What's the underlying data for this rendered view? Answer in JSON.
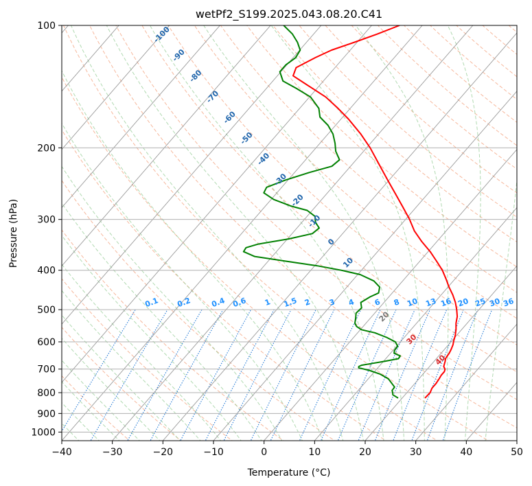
{
  "chart_data": {
    "type": "line",
    "title": "wetPf2_S199.2025.043.08.20.C41",
    "xlabel": "Temperature (°C)",
    "ylabel": "Pressure (hPa)",
    "xlim": [
      -40,
      50
    ],
    "ylim": [
      1050,
      100
    ],
    "y_scale": "log",
    "skew": "skew-T log-p diagram",
    "x_ticks": [
      -40,
      -30,
      -20,
      -10,
      0,
      10,
      20,
      30,
      40,
      50
    ],
    "y_ticks": [
      1000,
      900,
      800,
      700,
      600,
      500,
      400,
      300,
      200,
      100
    ],
    "grid": true,
    "series": [
      {
        "color": "#ff0000",
        "points": [
          [
            825,
            24.5
          ],
          [
            800,
            24.6
          ],
          [
            780,
            24.2
          ],
          [
            760,
            24.2
          ],
          [
            740,
            24.0
          ],
          [
            725,
            23.8
          ],
          [
            710,
            23.8
          ],
          [
            700,
            23.5
          ],
          [
            690,
            22.8
          ],
          [
            680,
            22.5
          ],
          [
            670,
            22.2
          ],
          [
            660,
            21.8
          ],
          [
            650,
            21.7
          ],
          [
            640,
            21.6
          ],
          [
            625,
            21.3
          ],
          [
            610,
            20.9
          ],
          [
            595,
            20.3
          ],
          [
            580,
            19.8
          ],
          [
            560,
            18.9
          ],
          [
            540,
            17.8
          ],
          [
            520,
            16.9
          ],
          [
            500,
            15.6
          ],
          [
            480,
            14.1
          ],
          [
            460,
            12.3
          ],
          [
            440,
            10.2
          ],
          [
            420,
            8.2
          ],
          [
            400,
            6.0
          ],
          [
            380,
            3.3
          ],
          [
            360,
            0.4
          ],
          [
            340,
            -3.0
          ],
          [
            320,
            -6.3
          ],
          [
            300,
            -9.2
          ],
          [
            280,
            -12.6
          ],
          [
            260,
            -16.3
          ],
          [
            240,
            -20.3
          ],
          [
            220,
            -24.6
          ],
          [
            200,
            -29.3
          ],
          [
            185,
            -33.5
          ],
          [
            170,
            -38.5
          ],
          [
            160,
            -42.4
          ],
          [
            150,
            -46.8
          ],
          [
            140,
            -52.6
          ],
          [
            133,
            -56.9
          ],
          [
            127,
            -57.7
          ],
          [
            120,
            -55.6
          ],
          [
            115,
            -53.7
          ],
          [
            110,
            -50.5
          ],
          [
            105,
            -47.4
          ],
          [
            100,
            -44.5
          ]
        ]
      },
      {
        "color": "#008000",
        "points": [
          [
            825,
            19.2
          ],
          [
            810,
            17.6
          ],
          [
            800,
            17.2
          ],
          [
            790,
            16.7
          ],
          [
            775,
            16.6
          ],
          [
            760,
            15.5
          ],
          [
            740,
            14.0
          ],
          [
            720,
            11.5
          ],
          [
            705,
            8.7
          ],
          [
            695,
            6.2
          ],
          [
            690,
            6.0
          ],
          [
            685,
            6.3
          ],
          [
            680,
            7.6
          ],
          [
            670,
            10.2
          ],
          [
            660,
            12.5
          ],
          [
            650,
            12.4
          ],
          [
            640,
            10.7
          ],
          [
            630,
            10.3
          ],
          [
            615,
            10.2
          ],
          [
            600,
            9.0
          ],
          [
            585,
            6.5
          ],
          [
            570,
            3.4
          ],
          [
            560,
            0.2
          ],
          [
            550,
            -1.3
          ],
          [
            540,
            -2.2
          ],
          [
            525,
            -2.9
          ],
          [
            510,
            -3.7
          ],
          [
            495,
            -3.5
          ],
          [
            480,
            -4.6
          ],
          [
            465,
            -3.7
          ],
          [
            455,
            -2.7
          ],
          [
            440,
            -3.5
          ],
          [
            425,
            -5.7
          ],
          [
            410,
            -9.5
          ],
          [
            400,
            -14.0
          ],
          [
            390,
            -19.5
          ],
          [
            380,
            -26.5
          ],
          [
            370,
            -33.5
          ],
          [
            360,
            -36.5
          ],
          [
            352,
            -36.7
          ],
          [
            345,
            -34.9
          ],
          [
            335,
            -29.8
          ],
          [
            325,
            -26.0
          ],
          [
            315,
            -25.6
          ],
          [
            305,
            -27.3
          ],
          [
            295,
            -28.4
          ],
          [
            285,
            -31.0
          ],
          [
            278,
            -35.0
          ],
          [
            268,
            -39.5
          ],
          [
            258,
            -42.6
          ],
          [
            250,
            -43.0
          ],
          [
            240,
            -40.5
          ],
          [
            230,
            -37.1
          ],
          [
            222,
            -33.7
          ],
          [
            214,
            -33.3
          ],
          [
            204,
            -35.5
          ],
          [
            195,
            -37.0
          ],
          [
            185,
            -39.0
          ],
          [
            176,
            -41.5
          ],
          [
            168,
            -44.5
          ],
          [
            160,
            -46.2
          ],
          [
            150,
            -49.8
          ],
          [
            143,
            -54.0
          ],
          [
            137,
            -58.0
          ],
          [
            130,
            -60.2
          ],
          [
            125,
            -60.2
          ],
          [
            120,
            -59.5
          ],
          [
            115,
            -59.9
          ],
          [
            110,
            -61.8
          ],
          [
            105,
            -64.2
          ],
          [
            100,
            -67.4
          ]
        ]
      }
    ],
    "dry_adiabat_labels": [
      "-100",
      "-90",
      "-80",
      "-70",
      "-60",
      "-50",
      "-40",
      "-30",
      "-20",
      "-10",
      "0",
      "10",
      "20",
      "30",
      "40"
    ],
    "mixing_ratio_labels": [
      "0.1",
      "0.2",
      "0.4",
      "0.6",
      "1",
      "1.5",
      "2",
      "3",
      "4",
      "6",
      "8",
      "10",
      "13",
      "16",
      "20",
      "25",
      "30",
      "36"
    ]
  }
}
